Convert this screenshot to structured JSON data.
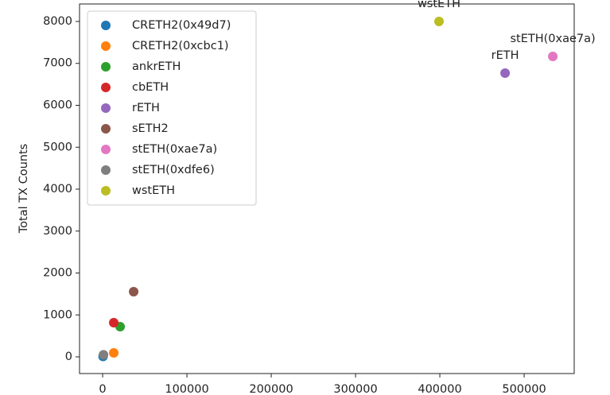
{
  "chart_data": {
    "type": "scatter",
    "y_label": "Total TX Counts",
    "xlim": [
      -27400,
      559400
    ],
    "ylim": [
      -398,
      8417
    ],
    "xticks": [
      0,
      100000,
      200000,
      300000,
      400000,
      500000
    ],
    "yticks": [
      0,
      1000,
      2000,
      3000,
      4000,
      5000,
      6000,
      7000,
      8000
    ],
    "legend": "upper left",
    "series": [
      {
        "name": "CRETH2(0x49d7)",
        "color": "#1f77b4",
        "x": [
          500
        ],
        "values": [
          10
        ]
      },
      {
        "name": "CRETH2(0xcbc1)",
        "color": "#ff7f0e",
        "x": [
          13200
        ],
        "values": [
          95
        ]
      },
      {
        "name": "ankrETH",
        "color": "#2ca02c",
        "x": [
          20750
        ],
        "values": [
          720
        ]
      },
      {
        "name": "cbETH",
        "color": "#d62728",
        "x": [
          13200
        ],
        "values": [
          815
        ]
      },
      {
        "name": "rETH",
        "color": "#9467bd",
        "x": [
          477400
        ],
        "values": [
          6768
        ],
        "annotate": true
      },
      {
        "name": "sETH2",
        "color": "#8c564b",
        "x": [
          36800
        ],
        "values": [
          1555
        ]
      },
      {
        "name": "stETH(0xae7a)",
        "color": "#e377c2",
        "x": [
          534000
        ],
        "values": [
          7166
        ],
        "annotate": true
      },
      {
        "name": "stETH(0xdfe6)",
        "color": "#7f7f7f",
        "x": [
          1000
        ],
        "values": [
          50
        ]
      },
      {
        "name": "wstETH",
        "color": "#bcbd22",
        "x": [
          399000
        ],
        "values": [
          8000
        ],
        "annotate": true
      }
    ]
  }
}
